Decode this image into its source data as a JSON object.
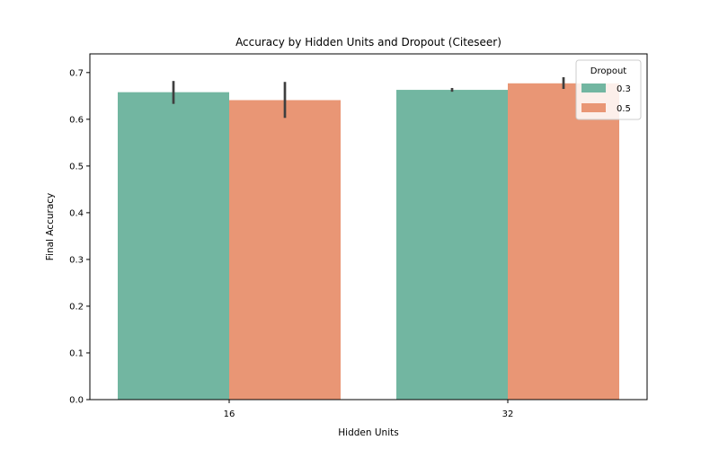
{
  "chart_data": {
    "type": "bar",
    "title": "Accuracy by Hidden Units and Dropout (Citeseer)",
    "xlabel": "Hidden Units",
    "ylabel": "Final Accuracy",
    "categories": [
      "16",
      "32"
    ],
    "ylim": [
      0,
      0.74
    ],
    "yticks": [
      0.0,
      0.1,
      0.2,
      0.3,
      0.4,
      0.5,
      0.6,
      0.7
    ],
    "grid": false,
    "legend": {
      "title": "Dropout",
      "placement": "top-right"
    },
    "series": [
      {
        "name": "0.3",
        "color": "#72b6a1",
        "values": [
          0.658,
          0.663
        ],
        "error_low": [
          0.633,
          0.659
        ],
        "error_high": [
          0.682,
          0.667
        ]
      },
      {
        "name": "0.5",
        "color": "#e99675",
        "values": [
          0.641,
          0.677
        ],
        "error_low": [
          0.603,
          0.665
        ],
        "error_high": [
          0.68,
          0.69
        ]
      }
    ]
  }
}
